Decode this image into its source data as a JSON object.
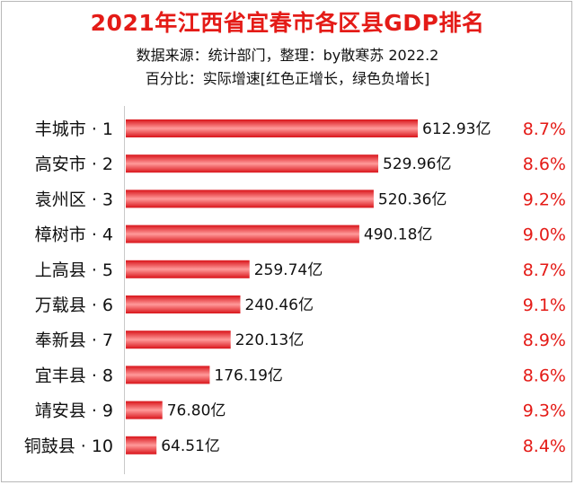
{
  "chart_data": {
    "type": "bar",
    "orientation": "horizontal",
    "title": "2021年江西省宜春市各区县GDP排名",
    "source": "数据来源：统计部门，整理：by散寒苏  2022.2",
    "note": "百分比：实际增速[红色正增长，绿色负增长]",
    "categories": [
      "丰城市 · 1",
      "高安市 · 2",
      "袁州区 · 3",
      "樟树市 · 4",
      "上高县 · 5",
      "万载县 · 6",
      "奉新县 · 7",
      "宜丰县 · 8",
      "靖安县 · 9",
      "铜鼓县 · 10"
    ],
    "values": [
      612.93,
      529.96,
      520.36,
      490.18,
      259.74,
      240.46,
      220.13,
      176.19,
      76.8,
      64.51
    ],
    "value_labels": [
      "612.93亿",
      "529.96亿",
      "520.36亿",
      "490.18亿",
      "259.74亿",
      "240.46亿",
      "220.13亿",
      "176.19亿",
      "76.80亿",
      "64.51亿"
    ],
    "growth_labels": [
      "8.7%",
      "8.6%",
      "9.2%",
      "9.0%",
      "8.7%",
      "9.1%",
      "8.9%",
      "8.6%",
      "9.3%",
      "8.4%"
    ],
    "xlim": [
      0,
      612.93
    ],
    "grid": false,
    "legend": "none",
    "colors": {
      "bar": "#e8151a",
      "bar_highlight": "#ff9a9a",
      "title": "#e41b17",
      "growth_positive": "#e41b17",
      "growth_negative": "#1a9a3a"
    }
  }
}
